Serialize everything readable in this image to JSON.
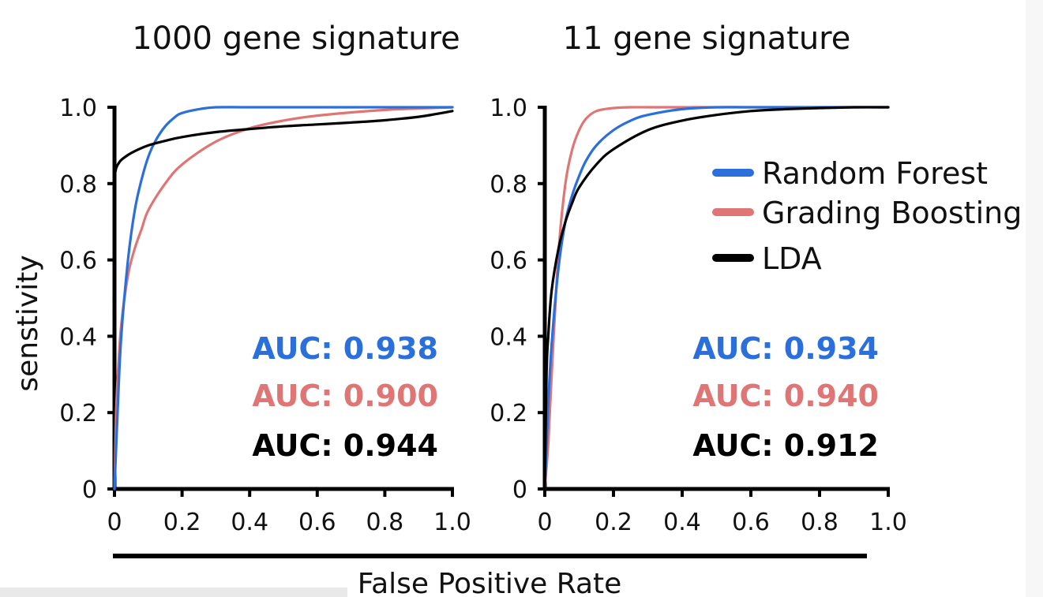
{
  "shared": {
    "ylabel": "senstivity",
    "xlabel": "False Positive Rate",
    "legend_position": "right-center",
    "series_colors": {
      "Random Forest": "#2a6fdb",
      "Grading Boosting": "#e07575",
      "LDA": "#000000"
    },
    "legend": [
      {
        "name": "Random Forest",
        "color": "#2a6fdb"
      },
      {
        "name": "Grading Boosting",
        "color": "#e07575"
      },
      {
        "name": "LDA",
        "color": "#000000"
      }
    ]
  },
  "chart_data": [
    {
      "type": "line",
      "title": "1000 gene signature",
      "xlabel": "",
      "ylabel": "senstivity",
      "xlim": [
        0,
        1.0
      ],
      "ylim": [
        0,
        1.0
      ],
      "xticks": [
        "0",
        "0.2",
        "0.4",
        "0.6",
        "0.8",
        "1.0"
      ],
      "yticks": [
        "0",
        "0.2",
        "0.4",
        "0.6",
        "0.8",
        "1.0"
      ],
      "series": [
        {
          "name": "Random Forest",
          "color": "#2a6fdb",
          "x": [
            0,
            0.01,
            0.02,
            0.04,
            0.06,
            0.08,
            0.1,
            0.12,
            0.15,
            0.18,
            0.2,
            0.25,
            0.3,
            0.4,
            0.6,
            0.8,
            1.0
          ],
          "y": [
            0,
            0.22,
            0.4,
            0.6,
            0.73,
            0.81,
            0.87,
            0.91,
            0.95,
            0.975,
            0.985,
            0.995,
            1.0,
            1.0,
            1.0,
            1.0,
            1.0
          ]
        },
        {
          "name": "Grading Boosting",
          "color": "#e07575",
          "x": [
            0,
            0.005,
            0.01,
            0.02,
            0.04,
            0.06,
            0.08,
            0.1,
            0.15,
            0.2,
            0.3,
            0.4,
            0.5,
            0.6,
            0.8,
            1.0
          ],
          "y": [
            0,
            0.2,
            0.3,
            0.43,
            0.56,
            0.63,
            0.68,
            0.73,
            0.8,
            0.85,
            0.91,
            0.945,
            0.965,
            0.978,
            0.993,
            1.0
          ]
        },
        {
          "name": "LDA",
          "color": "#000000",
          "x": [
            0,
            0.005,
            0.01,
            0.02,
            0.04,
            0.06,
            0.1,
            0.15,
            0.2,
            0.3,
            0.4,
            0.5,
            0.6,
            0.7,
            0.8,
            0.9,
            0.95,
            1.0
          ],
          "y": [
            0.82,
            0.84,
            0.85,
            0.862,
            0.875,
            0.885,
            0.9,
            0.912,
            0.922,
            0.935,
            0.943,
            0.95,
            0.955,
            0.96,
            0.966,
            0.975,
            0.982,
            0.99
          ]
        }
      ],
      "annotations": [
        {
          "text": "AUC: 0.938",
          "series": "Random Forest",
          "color": "#2a6fdb"
        },
        {
          "text": "AUC: 0.900",
          "series": "Grading Boosting",
          "color": "#e07575"
        },
        {
          "text": "AUC: 0.944",
          "series": "LDA",
          "color": "#000000"
        }
      ],
      "grid": false
    },
    {
      "type": "line",
      "title": "11 gene signature",
      "xlabel": "",
      "ylabel": "",
      "xlim": [
        0,
        1.0
      ],
      "ylim": [
        0,
        1.0
      ],
      "xticks": [
        "0",
        "0.2",
        "0.4",
        "0.6",
        "0.8",
        "1.0"
      ],
      "yticks": [
        "0",
        "0.2",
        "0.4",
        "0.6",
        "0.8",
        "1.0"
      ],
      "series": [
        {
          "name": "Random Forest",
          "color": "#2a6fdb",
          "x": [
            0,
            0.01,
            0.02,
            0.04,
            0.06,
            0.08,
            0.1,
            0.12,
            0.15,
            0.2,
            0.25,
            0.3,
            0.4,
            0.5,
            0.6,
            0.8,
            1.0
          ],
          "y": [
            0,
            0.22,
            0.38,
            0.58,
            0.7,
            0.77,
            0.82,
            0.86,
            0.9,
            0.94,
            0.965,
            0.98,
            0.995,
            1.0,
            1.0,
            1.0,
            1.0
          ]
        },
        {
          "name": "Grading Boosting",
          "color": "#e07575",
          "x": [
            0,
            0.01,
            0.02,
            0.04,
            0.06,
            0.08,
            0.1,
            0.12,
            0.15,
            0.2,
            0.25,
            0.3,
            0.4,
            0.6,
            0.8,
            1.0
          ],
          "y": [
            0,
            0.12,
            0.3,
            0.62,
            0.8,
            0.89,
            0.94,
            0.97,
            0.99,
            0.998,
            1.0,
            1.0,
            1.0,
            1.0,
            1.0,
            1.0
          ]
        },
        {
          "name": "LDA",
          "color": "#000000",
          "x": [
            0,
            0.005,
            0.01,
            0.02,
            0.04,
            0.06,
            0.08,
            0.1,
            0.15,
            0.2,
            0.3,
            0.4,
            0.5,
            0.6,
            0.7,
            0.8,
            0.9,
            1.0
          ],
          "y": [
            0,
            0.3,
            0.4,
            0.52,
            0.63,
            0.7,
            0.75,
            0.79,
            0.85,
            0.89,
            0.94,
            0.965,
            0.98,
            0.99,
            0.995,
            0.998,
            1.0,
            1.0
          ]
        }
      ],
      "annotations": [
        {
          "text": "AUC: 0.934",
          "series": "Random Forest",
          "color": "#2a6fdb"
        },
        {
          "text": "AUC: 0.940",
          "series": "Grading Boosting",
          "color": "#e07575"
        },
        {
          "text": "AUC: 0.912",
          "series": "LDA",
          "color": "#000000"
        }
      ],
      "grid": false
    }
  ]
}
